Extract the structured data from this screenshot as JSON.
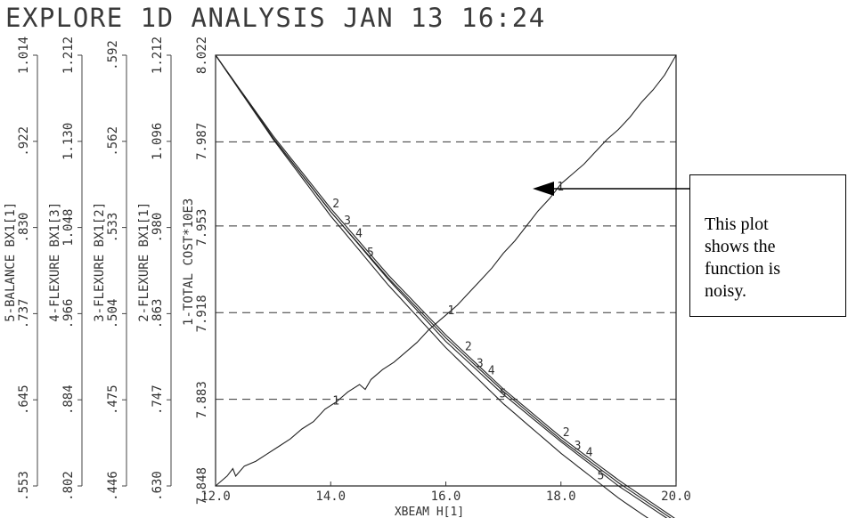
{
  "chart_data": {
    "type": "line",
    "title": "EXPLORE  1D  ANALYSIS  JAN  13  16:24",
    "xlabel": "XBEAM H[1]",
    "x_ticks": [
      "12.0",
      "14.0",
      "16.0",
      "18.0",
      "20.0"
    ],
    "xlim": [
      12.0,
      20.0
    ],
    "axes": [
      {
        "label": "1-TOTAL COST*10E3",
        "ticks": [
          "7.848",
          "7.883",
          "7.918",
          "7.953",
          "7.987",
          "8.022"
        ],
        "range": [
          7.848,
          8.022
        ]
      },
      {
        "label": "2-FLEXURE BX1[1]",
        "ticks": [
          ".630",
          ".747",
          ".863",
          ".980",
          "1.096",
          "1.212"
        ],
        "range": [
          0.63,
          1.212
        ]
      },
      {
        "label": "3-FLEXURE BX1[2]",
        "ticks": [
          ".446",
          ".475",
          ".504",
          ".533",
          ".562",
          ".592"
        ],
        "range": [
          0.446,
          0.592
        ]
      },
      {
        "label": "4-FLEXURE BX1[3]",
        "ticks": [
          ".802",
          ".884",
          ".966",
          "1.048",
          "1.130",
          "1.212"
        ],
        "range": [
          0.802,
          1.212
        ]
      },
      {
        "label": "5-BALANCE BX1[1]",
        "ticks": [
          ".553",
          ".645",
          ".737",
          ".830",
          ".922",
          "1.014"
        ],
        "range": [
          0.553,
          1.014
        ]
      }
    ],
    "grid_values": [
      7.883,
      7.918,
      7.953,
      7.987
    ],
    "series": [
      {
        "name": "1",
        "values": [
          [
            12.0,
            7.848
          ],
          [
            12.2,
            7.852
          ],
          [
            12.3,
            7.855
          ],
          [
            12.35,
            7.852
          ],
          [
            12.5,
            7.856
          ],
          [
            12.7,
            7.858
          ],
          [
            12.9,
            7.861
          ],
          [
            13.1,
            7.864
          ],
          [
            13.3,
            7.867
          ],
          [
            13.5,
            7.871
          ],
          [
            13.7,
            7.874
          ],
          [
            13.9,
            7.879
          ],
          [
            14.1,
            7.882
          ],
          [
            14.3,
            7.886
          ],
          [
            14.5,
            7.889
          ],
          [
            14.6,
            7.887
          ],
          [
            14.7,
            7.891
          ],
          [
            14.9,
            7.895
          ],
          [
            15.1,
            7.898
          ],
          [
            15.3,
            7.902
          ],
          [
            15.5,
            7.906
          ],
          [
            15.7,
            7.911
          ],
          [
            15.9,
            7.915
          ],
          [
            16.0,
            7.917
          ],
          [
            16.2,
            7.921
          ],
          [
            16.4,
            7.926
          ],
          [
            16.6,
            7.931
          ],
          [
            16.8,
            7.936
          ],
          [
            17.0,
            7.942
          ],
          [
            17.2,
            7.947
          ],
          [
            17.4,
            7.953
          ],
          [
            17.6,
            7.959
          ],
          [
            17.8,
            7.964
          ],
          [
            18.0,
            7.97
          ],
          [
            18.2,
            7.974
          ],
          [
            18.4,
            7.978
          ],
          [
            18.6,
            7.983
          ],
          [
            18.8,
            7.988
          ],
          [
            19.0,
            7.992
          ],
          [
            19.2,
            7.997
          ],
          [
            19.4,
            8.003
          ],
          [
            19.6,
            8.008
          ],
          [
            19.8,
            8.014
          ],
          [
            20.0,
            8.022
          ]
        ]
      },
      {
        "name": "2",
        "values": [
          [
            12.0,
            1.212
          ],
          [
            13.0,
            1.103
          ],
          [
            14.0,
            1.005
          ],
          [
            15.0,
            0.915
          ],
          [
            16.0,
            0.834
          ],
          [
            17.0,
            0.761
          ],
          [
            18.0,
            0.696
          ],
          [
            19.0,
            0.638
          ],
          [
            20.0,
            0.585
          ]
        ]
      },
      {
        "name": "3",
        "values": [
          [
            12.0,
            0.592
          ],
          [
            13.0,
            0.564
          ],
          [
            14.0,
            0.539
          ],
          [
            15.0,
            0.516
          ],
          [
            16.0,
            0.495
          ],
          [
            17.0,
            0.477
          ],
          [
            18.0,
            0.461
          ],
          [
            19.0,
            0.446
          ],
          [
            20.0,
            0.433
          ]
        ]
      },
      {
        "name": "4",
        "values": [
          [
            12.0,
            1.212
          ],
          [
            13.0,
            1.133
          ],
          [
            14.0,
            1.063
          ],
          [
            15.0,
            1.0
          ],
          [
            16.0,
            0.943
          ],
          [
            17.0,
            0.892
          ],
          [
            18.0,
            0.846
          ],
          [
            19.0,
            0.805
          ],
          [
            20.0,
            0.768
          ]
        ]
      },
      {
        "name": "5",
        "values": [
          [
            12.0,
            1.014
          ],
          [
            13.0,
            0.924
          ],
          [
            14.0,
            0.842
          ],
          [
            15.0,
            0.768
          ],
          [
            16.0,
            0.701
          ],
          [
            17.0,
            0.641
          ],
          [
            18.0,
            0.588
          ],
          [
            19.0,
            0.54
          ],
          [
            20.0,
            0.498
          ]
        ]
      }
    ]
  },
  "callout": {
    "text": "This plot\nshows the\nfunction is\nnoisy."
  }
}
